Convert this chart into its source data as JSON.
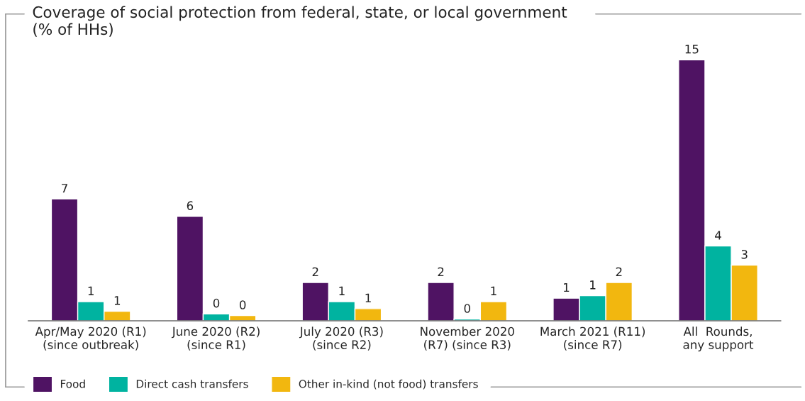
{
  "chart_data": {
    "type": "bar",
    "title": "Coverage of social protection from federal, state, or local government\n(% of HHs)",
    "categories": [
      "Apr/May 2020 (R1)\n(since outbreak)",
      "June 2020 (R2)\n(since R1)",
      "July 2020 (R3)\n(since R2)",
      "November 2020\n(R7) (since R3)",
      "March 2021 (R11)\n(since R7)",
      "All  Rounds,\nany support"
    ],
    "series": [
      {
        "name": "Food",
        "color": "#4f1363",
        "values": [
          7.0,
          6.0,
          2.2,
          2.2,
          1.3,
          15.0
        ],
        "value_labels": [
          "7",
          "6",
          "2",
          "2",
          "1",
          "15"
        ]
      },
      {
        "name": "Direct cash transfers",
        "color": "#00b3a0",
        "values": [
          1.1,
          0.4,
          1.1,
          0.1,
          1.45,
          4.3
        ],
        "value_labels": [
          "1",
          "0",
          "1",
          "0",
          "1",
          "4"
        ]
      },
      {
        "name": "Other in-kind (not food) transfers",
        "color": "#f2b70f",
        "values": [
          0.55,
          0.3,
          0.7,
          1.1,
          2.2,
          3.2
        ],
        "value_labels": [
          "1",
          "0",
          "1",
          "1",
          "2",
          "3"
        ]
      }
    ],
    "legend": "bottom left",
    "grid": false
  }
}
